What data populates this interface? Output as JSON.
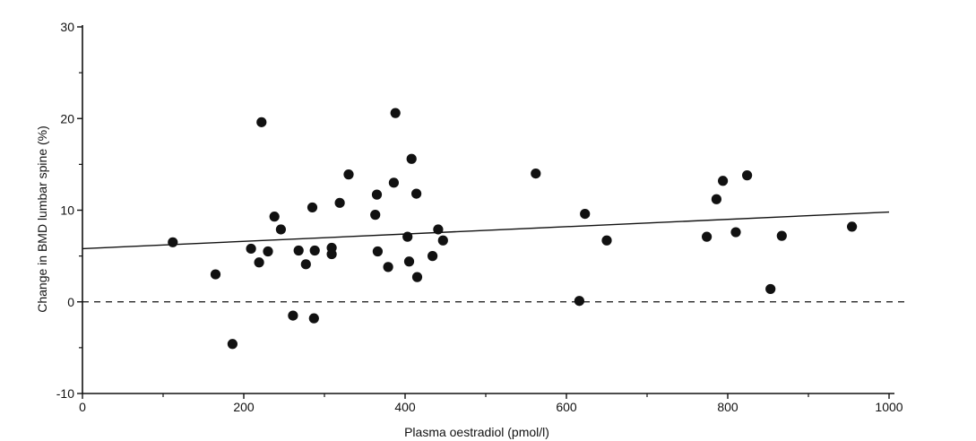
{
  "chart_data": {
    "type": "scatter",
    "xlabel": "Plasma oestradiol (pmol/l)",
    "ylabel": "Change in BMD lumbar spine (%)",
    "xlim": [
      0,
      1000
    ],
    "ylim": [
      -10,
      30
    ],
    "x_ticks": [
      0,
      200,
      400,
      600,
      800,
      1000
    ],
    "y_ticks": [
      -10,
      0,
      10,
      20,
      30
    ],
    "x_minor_ticks": [
      100,
      300,
      500,
      700,
      900
    ],
    "y_minor_ticks": [
      -5,
      5,
      15,
      25
    ],
    "grid": false,
    "points": [
      {
        "x": 112,
        "y": 6.5
      },
      {
        "x": 165,
        "y": 3.0
      },
      {
        "x": 186,
        "y": -4.6
      },
      {
        "x": 209,
        "y": 5.8
      },
      {
        "x": 219,
        "y": 4.3
      },
      {
        "x": 222,
        "y": 19.6
      },
      {
        "x": 230,
        "y": 5.5
      },
      {
        "x": 238,
        "y": 9.3
      },
      {
        "x": 246,
        "y": 7.9
      },
      {
        "x": 261,
        "y": -1.5
      },
      {
        "x": 268,
        "y": 5.6
      },
      {
        "x": 277,
        "y": 4.1
      },
      {
        "x": 285,
        "y": 10.3
      },
      {
        "x": 288,
        "y": 5.6
      },
      {
        "x": 287,
        "y": -1.8
      },
      {
        "x": 309,
        "y": 5.9
      },
      {
        "x": 309,
        "y": 5.2
      },
      {
        "x": 319,
        "y": 10.8
      },
      {
        "x": 330,
        "y": 13.9
      },
      {
        "x": 363,
        "y": 9.5
      },
      {
        "x": 365,
        "y": 11.7
      },
      {
        "x": 366,
        "y": 5.5
      },
      {
        "x": 379,
        "y": 3.8
      },
      {
        "x": 386,
        "y": 13.0
      },
      {
        "x": 388,
        "y": 20.6
      },
      {
        "x": 403,
        "y": 7.1
      },
      {
        "x": 405,
        "y": 4.4
      },
      {
        "x": 408,
        "y": 15.6
      },
      {
        "x": 414,
        "y": 11.8
      },
      {
        "x": 415,
        "y": 2.7
      },
      {
        "x": 434,
        "y": 5.0
      },
      {
        "x": 441,
        "y": 7.9
      },
      {
        "x": 447,
        "y": 6.7
      },
      {
        "x": 562,
        "y": 14.0
      },
      {
        "x": 616,
        "y": 0.1
      },
      {
        "x": 623,
        "y": 9.6
      },
      {
        "x": 650,
        "y": 6.7
      },
      {
        "x": 774,
        "y": 7.1
      },
      {
        "x": 786,
        "y": 11.2
      },
      {
        "x": 794,
        "y": 13.2
      },
      {
        "x": 810,
        "y": 7.6
      },
      {
        "x": 824,
        "y": 13.8
      },
      {
        "x": 853,
        "y": 1.4
      },
      {
        "x": 867,
        "y": 7.2
      },
      {
        "x": 954,
        "y": 8.2
      }
    ],
    "regression_line": {
      "x": [
        0,
        1000
      ],
      "y": [
        5.8,
        9.8
      ],
      "style": "solid"
    },
    "reference_line": {
      "y": 0,
      "style": "dashed"
    }
  }
}
